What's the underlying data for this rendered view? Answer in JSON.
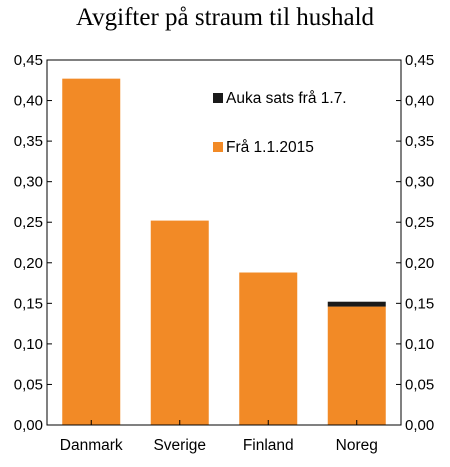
{
  "chart_data": {
    "type": "bar",
    "stacked": true,
    "title": "Avgifter på straum til hushald",
    "categories": [
      "Danmark",
      "Sverige",
      "Finland",
      "Noreg"
    ],
    "series": [
      {
        "name": "Frå 1.1.2015",
        "color": "#f28a26",
        "values": [
          0.427,
          0.252,
          0.188,
          0.146
        ]
      },
      {
        "name": "Auka sats frå 1.7.",
        "color": "#1a1a1a",
        "values": [
          0,
          0,
          0,
          0.006
        ]
      }
    ],
    "ylim": [
      0,
      0.45
    ],
    "yticks": [
      "0,00",
      "0,05",
      "0,10",
      "0,15",
      "0,20",
      "0,25",
      "0,30",
      "0,35",
      "0,40",
      "0,45"
    ],
    "y_axis_sides": [
      "left",
      "right"
    ],
    "grid": false,
    "legend_position": "top-right"
  }
}
